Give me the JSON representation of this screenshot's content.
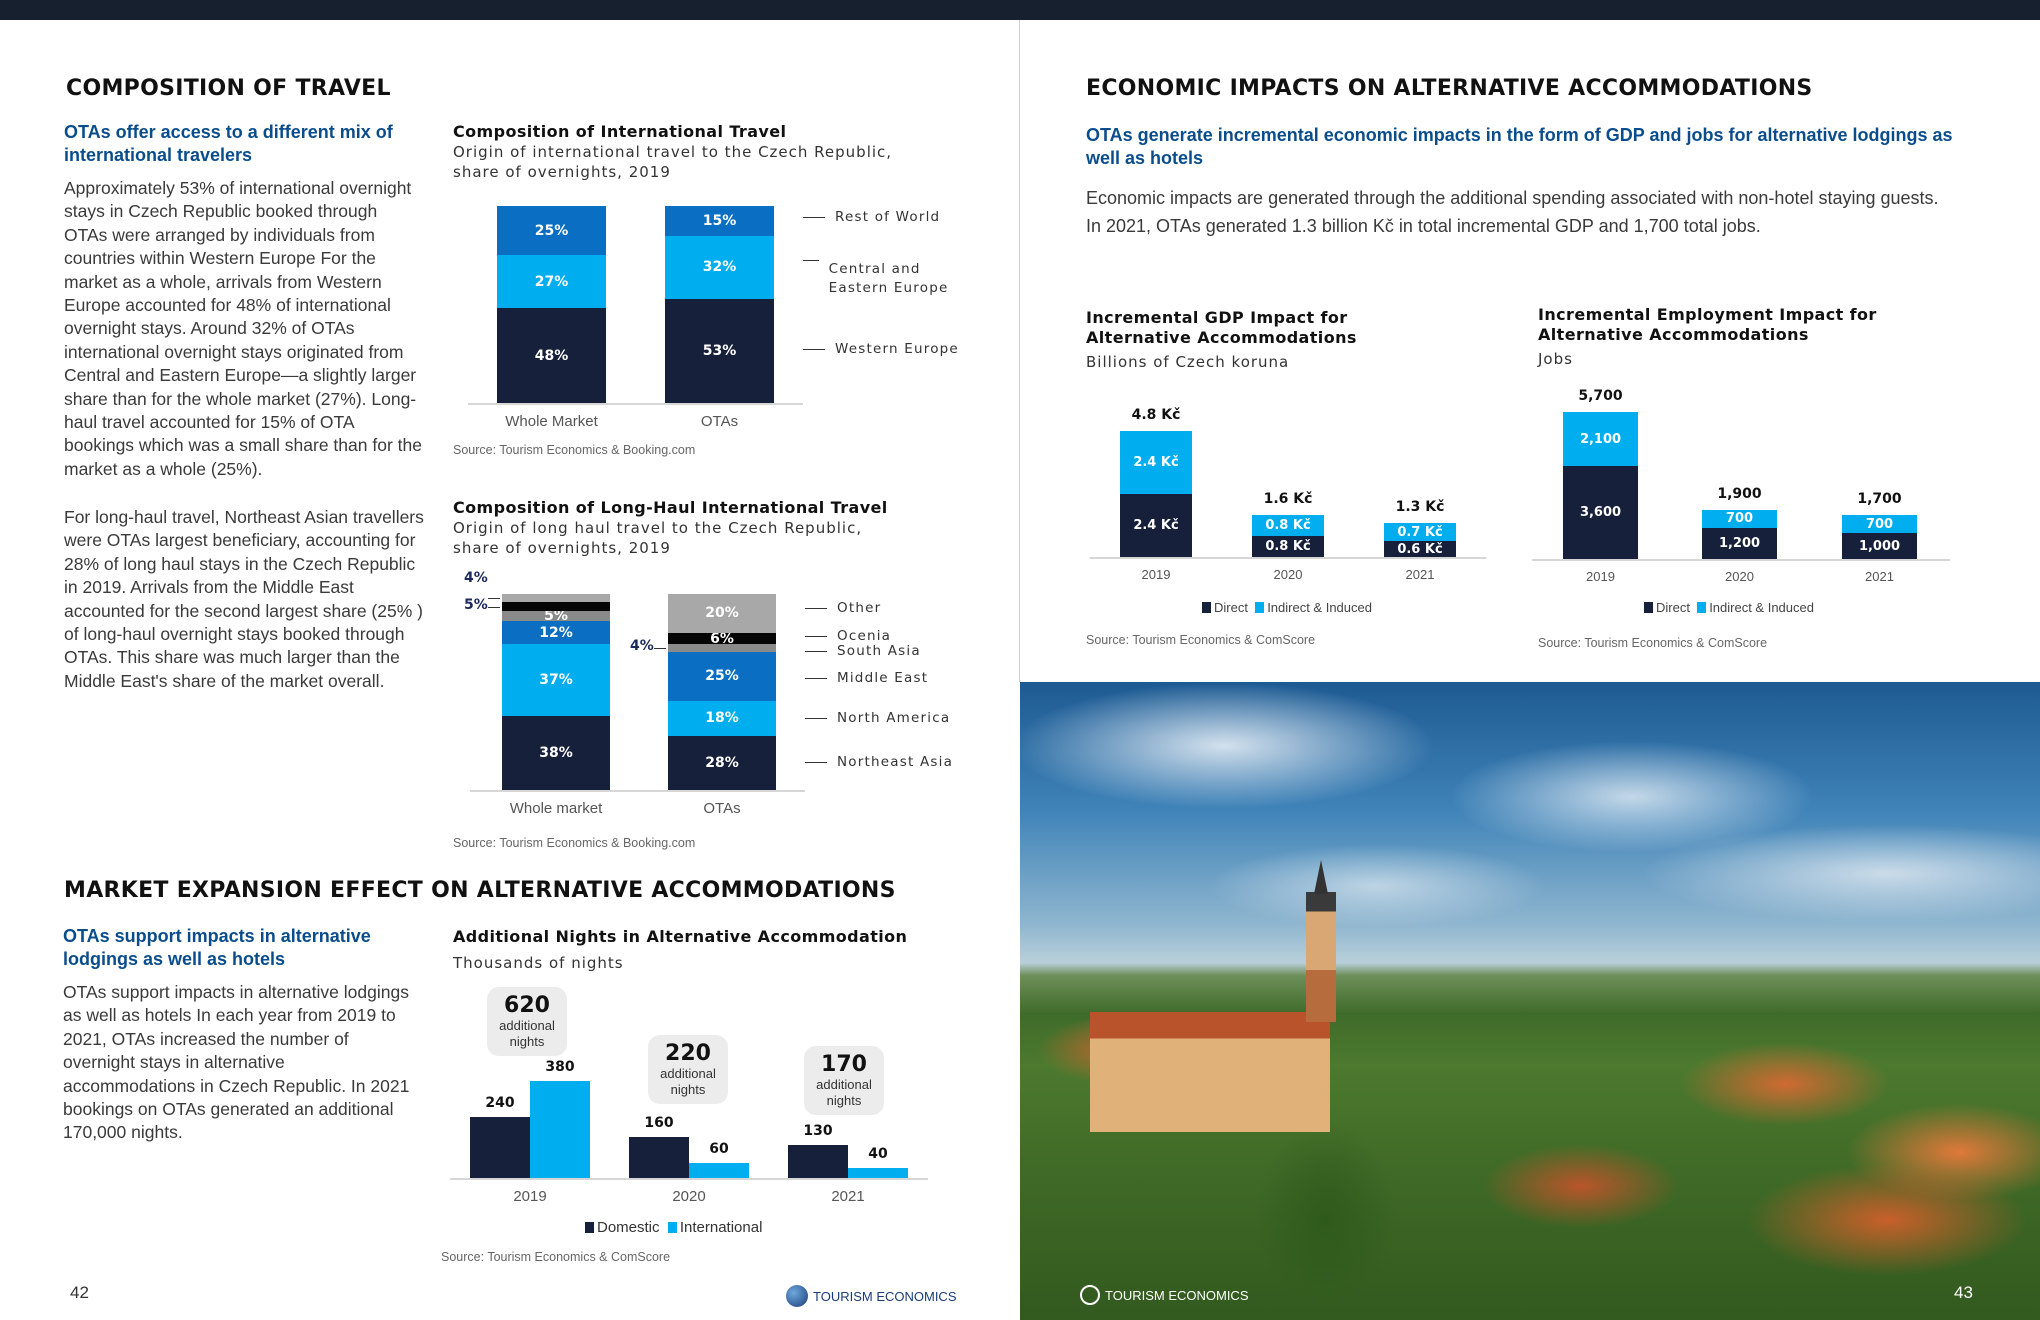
{
  "left": {
    "heading": "COMPOSITION OF TRAVEL",
    "subtitle": "OTAs offer access to a different mix of international travelers",
    "body1": "Approximately 53% of international overnight stays in Czech Republic booked through OTAs were arranged by individuals from countries within Western Europe For the market as a whole, arrivals from Western Europe accounted for 48% of international overnight stays. Around 32% of OTAs international overnight stays originated from Central and Eastern Europe—a slightly larger share than for the whole market (27%). Long-haul travel accounted for 15% of OTA bookings which was a small share than for the market as a whole (25%).",
    "body2": "For long-haul travel, Northeast Asian travellers were OTAs largest beneficiary, accounting for 28% of long haul stays in the Czech Republic in 2019. Arrivals from the Middle East accounted for the second largest share (25% ) of long-haul overnight stays booked through OTAs. This share was much larger than the Middle East's share of the market overall.",
    "heading2": "MARKET EXPANSION EFFECT ON ALTERNATIVE ACCOMMODATIONS",
    "subtitle2": "OTAs support impacts in alternative lodgings as well as hotels",
    "body3": "OTAs support impacts in alternative lodgings as well as hotels In each year from 2019 to 2021, OTAs increased the number of overnight stays in alternative accommodations in Czech Republic. In 2021 bookings on OTAs generated an additional 170,000 nights.",
    "page_number": "42",
    "logo_text": "TOURISM ECONOMICS"
  },
  "right": {
    "heading": "ECONOMIC IMPACTS ON ALTERNATIVE ACCOMMODATIONS",
    "subtitle": "OTAs generate incremental economic impacts in the form of GDP and jobs for alternative lodgings as well as hotels",
    "body": "Economic impacts are generated through the additional spending associated with non-hotel staying guests. In 2021, OTAs generated 1.3 billion Kč in total incremental GDP and 1,700 total jobs.",
    "page_number": "43",
    "logo_text": "TOURISM ECONOMICS"
  },
  "colors": {
    "dark": "#17203a",
    "light": "#00aeef",
    "mid": "#0a6fc2",
    "gray": "#8a8a8a",
    "black": "#050505",
    "lightgray": "#a8a8a8"
  },
  "chart_data": [
    {
      "type": "bar",
      "stacked": true,
      "title": "Composition of International Travel",
      "subtitle1": "Origin of international travel to the Czech Republic,",
      "subtitle2": "share of overnights, 2019",
      "categories": [
        "Whole Market",
        "OTAs"
      ],
      "series": [
        {
          "name": "Western Europe",
          "values": [
            48,
            53
          ]
        },
        {
          "name": "Central and Eastern Europe",
          "values": [
            27,
            32
          ]
        },
        {
          "name": "Rest of World",
          "values": [
            25,
            15
          ]
        }
      ],
      "unit": "%",
      "source": "Source: Tourism Economics & Booking.com"
    },
    {
      "type": "bar",
      "stacked": true,
      "title": "Composition of Long-Haul International Travel",
      "subtitle1": "Origin of long haul travel to the Czech Republic,",
      "subtitle2": "share of overnights, 2019",
      "categories": [
        "Whole market",
        "OTAs"
      ],
      "series": [
        {
          "name": "Northeast Asia",
          "values": [
            38,
            28
          ]
        },
        {
          "name": "North America",
          "values": [
            37,
            18
          ]
        },
        {
          "name": "Middle East",
          "values": [
            12,
            25
          ]
        },
        {
          "name": "South Asia",
          "values": [
            5,
            4
          ]
        },
        {
          "name": "Ocenia",
          "values": [
            5,
            6
          ]
        },
        {
          "name": "Other",
          "values": [
            4,
            20
          ]
        }
      ],
      "unit": "%",
      "source": "Source: Tourism Economics & Booking.com"
    },
    {
      "type": "bar",
      "stacked": false,
      "title": "Additional Nights in Alternative Accommodation",
      "subtitle1": "Thousands of nights",
      "categories": [
        "2019",
        "2020",
        "2021"
      ],
      "series": [
        {
          "name": "Domestic",
          "values": [
            240,
            160,
            130
          ]
        },
        {
          "name": "International",
          "values": [
            380,
            60,
            40
          ]
        }
      ],
      "totals": [
        "620",
        "220",
        "170"
      ],
      "total_caption": "additional nights",
      "source": "Source: Tourism Economics & ComScore"
    },
    {
      "type": "bar",
      "stacked": true,
      "title": "Incremental GDP Impact for Alternative Accommodations",
      "subtitle1": "Billions of Czech koruna",
      "categories": [
        "2019",
        "2020",
        "2021"
      ],
      "series": [
        {
          "name": "Direct",
          "values": [
            2.4,
            0.8,
            0.6
          ]
        },
        {
          "name": "Indirect & Induced",
          "values": [
            2.4,
            0.8,
            0.7
          ]
        }
      ],
      "totals": [
        4.8,
        1.6,
        1.3
      ],
      "unit": " Kč",
      "source": "Source: Tourism Economics & ComScore"
    },
    {
      "type": "bar",
      "stacked": true,
      "title": "Incremental Employment Impact for Alternative Accommodations",
      "subtitle1": "Jobs",
      "categories": [
        "2019",
        "2020",
        "2021"
      ],
      "series": [
        {
          "name": "Direct",
          "values": [
            3600,
            1200,
            1000
          ]
        },
        {
          "name": "Indirect & Induced",
          "values": [
            2100,
            700,
            700
          ]
        }
      ],
      "totals": [
        5700,
        1900,
        1700
      ],
      "unit": "",
      "source": "Source: Tourism Economics & ComScore"
    }
  ]
}
